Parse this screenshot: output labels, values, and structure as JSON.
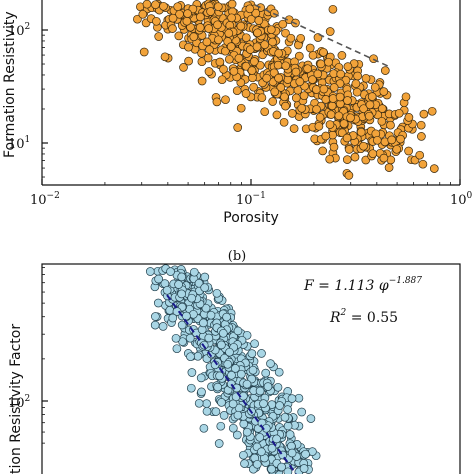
{
  "chart_data": [
    {
      "type": "scatter",
      "panel": "",
      "xlabel": "Porosity",
      "ylabel": "Formation Resistivity",
      "x_scale": "log",
      "y_scale": "log",
      "xlim": [
        0.01,
        1.0
      ],
      "ylim": [
        5,
        300
      ],
      "x_tick_labels": [
        "10−2",
        "10−1",
        "100"
      ],
      "y_tick_labels": [
        "101",
        "102"
      ],
      "marker_color": "#f2a33a",
      "marker_edge": "#3a2a10",
      "trend_line": {
        "style": "dashed",
        "color": "#555555",
        "x": [
          0.15,
          0.45
        ],
        "y": [
          160,
          48
        ]
      },
      "series": [
        {
          "values": []
        }
      ]
    },
    {
      "type": "scatter",
      "panel": "(b)",
      "xlabel": "",
      "ylabel": "tion Resistivity Factor",
      "x_scale": "log",
      "y_scale": "log",
      "ylim": [
        20,
        1000
      ],
      "y_tick_labels": [
        "102"
      ],
      "marker_color": "#a9d6e5",
      "marker_edge": "#23404d",
      "fit_line": {
        "style": "dashed",
        "color": "#1a1a8c"
      },
      "annotation_equation": "F = 1.113 φ^−1.887",
      "annotation_r2": "R² = 0.55",
      "series": [
        {
          "values": []
        }
      ]
    }
  ]
}
